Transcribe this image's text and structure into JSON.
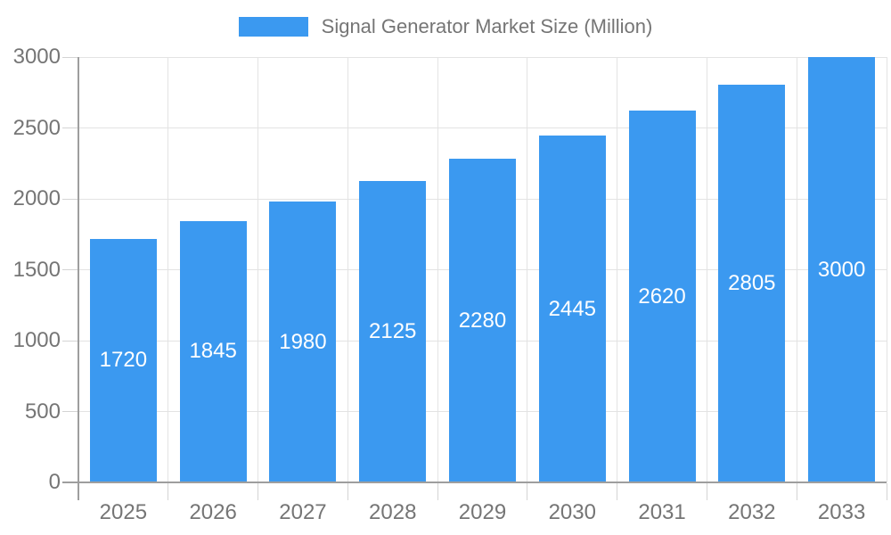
{
  "legend": {
    "swatch_color": "#3B99F0",
    "label": "Signal Generator Market Size (Million)"
  },
  "chart_data": {
    "type": "bar",
    "title": "Signal Generator Market Size (Million)",
    "categories": [
      "2025",
      "2026",
      "2027",
      "2028",
      "2029",
      "2030",
      "2031",
      "2032",
      "2033"
    ],
    "values": [
      1720,
      1845,
      1980,
      2125,
      2280,
      2445,
      2620,
      2805,
      3000
    ],
    "value_labels": [
      "1720",
      "1845",
      "1980",
      "2125",
      "2280",
      "2445",
      "2620",
      "2805",
      "3000"
    ],
    "xlabel": "",
    "ylabel": "",
    "ylim": [
      0,
      3000
    ],
    "ytick_interval": 500,
    "ytick_labels": [
      "0",
      "500",
      "1000",
      "1500",
      "2000",
      "2500",
      "3000"
    ],
    "grid": true,
    "legend_position": "top-center",
    "bar_color": "#3B99F0",
    "value_label_color": "#FFFFFF",
    "axis_text_color": "#757575",
    "axis_line_color": "#9E9E9E",
    "gridline_color": "#E3E3E3",
    "tick_color": "#D4D4D4",
    "background_color": "#FFFFFF"
  }
}
